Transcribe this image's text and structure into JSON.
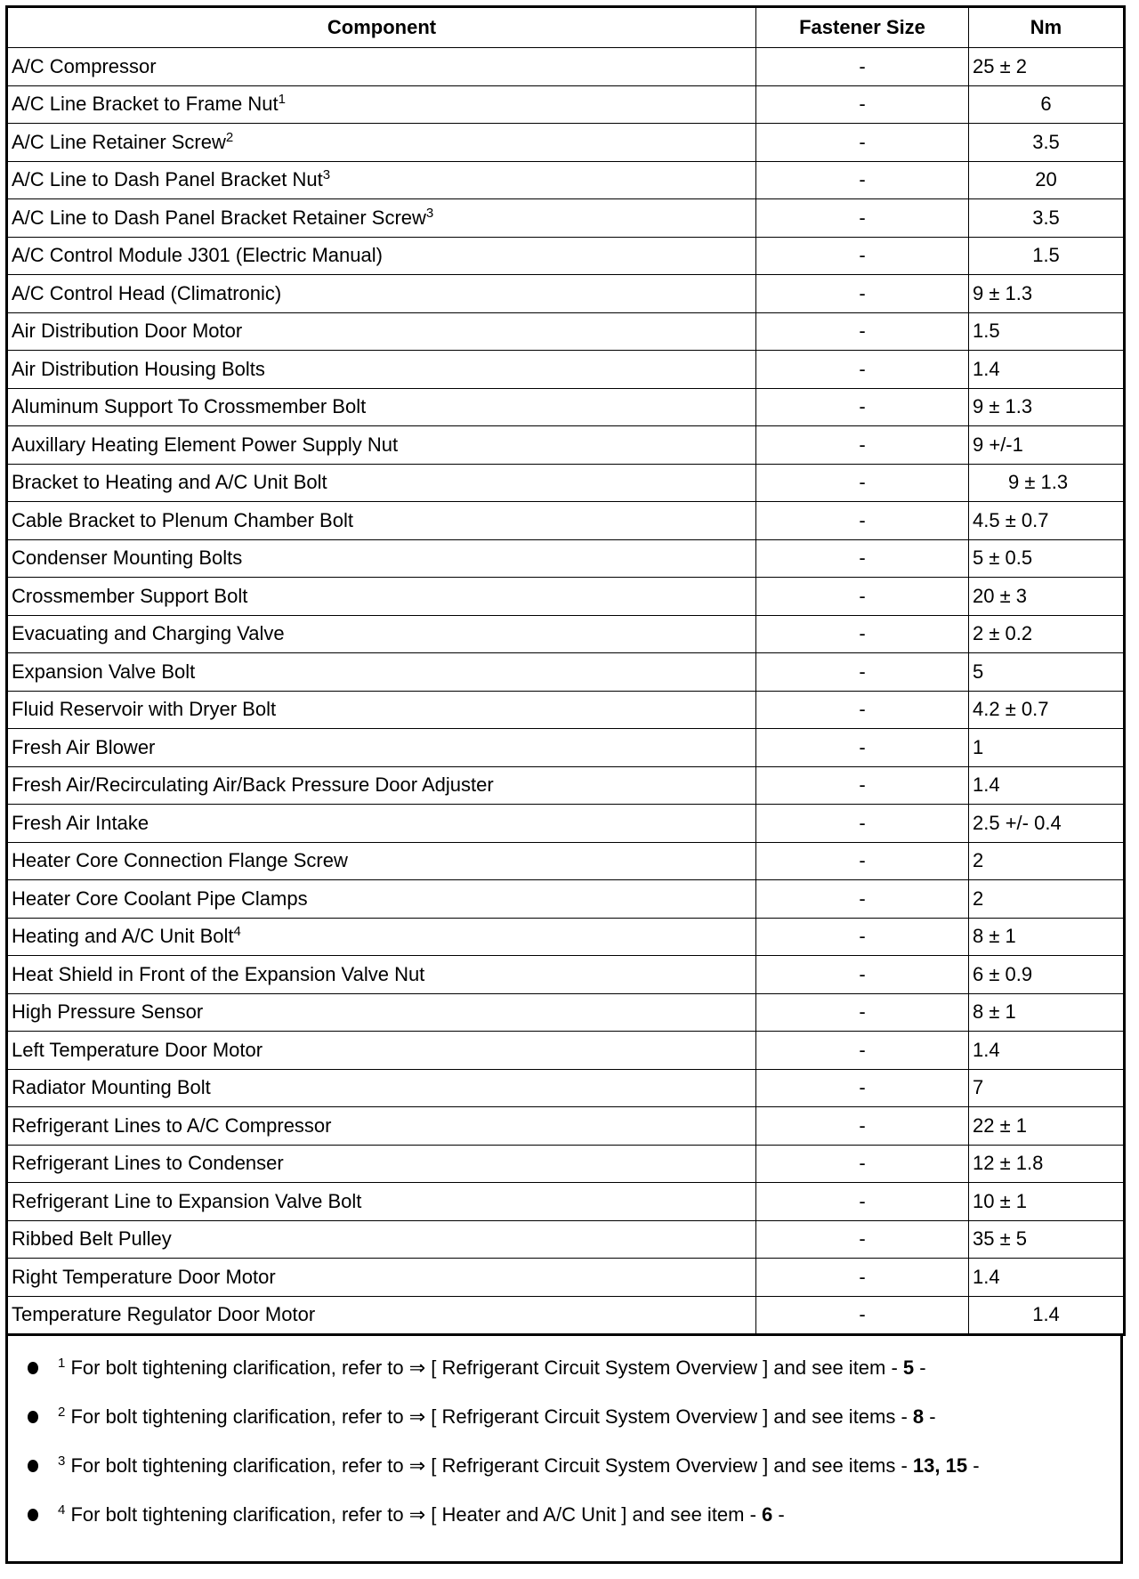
{
  "headers": [
    "Component",
    "Fastener Size",
    "Nm"
  ],
  "rows": [
    {
      "component": "A/C Compressor",
      "sup": "",
      "size": "-",
      "nm": "25 ± 2"
    },
    {
      "component": "A/C Line Bracket to Frame Nut",
      "sup": "1",
      "size": "-",
      "nm": "6"
    },
    {
      "component": "A/C Line Retainer Screw",
      "sup": "2",
      "size": "-",
      "nm": "3.5"
    },
    {
      "component": "A/C Line to Dash Panel Bracket Nut",
      "sup": "3",
      "size": "-",
      "nm": "20"
    },
    {
      "component": "A/C Line to Dash Panel Bracket Retainer Screw",
      "sup": "3",
      "size": "-",
      "nm": "3.5"
    },
    {
      "component": "A/C Control Module J301 (Electric Manual)",
      "sup": "",
      "size": "-",
      "nm": "1.5"
    },
    {
      "component": "A/C Control Head (Climatronic)",
      "sup": "",
      "size": "-",
      "nm": "9 ± 1.3"
    },
    {
      "component": "Air Distribution Door Motor",
      "sup": "",
      "size": "-",
      "nm": "1.5"
    },
    {
      "component": "Air Distribution Housing Bolts",
      "sup": "",
      "size": "-",
      "nm": "1.4"
    },
    {
      "component": "Aluminum Support To Crossmember Bolt",
      "sup": "",
      "size": "-",
      "nm": "9 ± 1.3"
    },
    {
      "component": "Auxillary Heating Element Power Supply Nut",
      "sup": "",
      "size": "-",
      "nm": "9 +/-1"
    },
    {
      "component": "Bracket to Heating and A/C Unit Bolt",
      "sup": "",
      "size": "-",
      "nm": "9 ± 1.3"
    },
    {
      "component": "Cable Bracket to Plenum Chamber Bolt",
      "sup": "",
      "size": "-",
      "nm": "4.5 ± 0.7"
    },
    {
      "component": "Condenser Mounting Bolts",
      "sup": "",
      "size": "-",
      "nm": "5 ± 0.5"
    },
    {
      "component": "Crossmember Support Bolt",
      "sup": "",
      "size": "-",
      "nm": "20 ± 3"
    },
    {
      "component": "Evacuating and Charging Valve",
      "sup": "",
      "size": "-",
      "nm": "2 ± 0.2"
    },
    {
      "component": "Expansion Valve Bolt",
      "sup": "",
      "size": "-",
      "nm": "5"
    },
    {
      "component": "Fluid Reservoir with Dryer Bolt",
      "sup": "",
      "size": "-",
      "nm": "4.2 ± 0.7"
    },
    {
      "component": "Fresh Air Blower",
      "sup": "",
      "size": "-",
      "nm": "1"
    },
    {
      "component": "Fresh Air/Recirculating Air/Back Pressure Door Adjuster",
      "sup": "",
      "size": "-",
      "nm": "1.4"
    },
    {
      "component": "Fresh Air Intake",
      "sup": "",
      "size": "-",
      "nm": "2.5 +/- 0.4"
    },
    {
      "component": "Heater Core Connection Flange Screw",
      "sup": "",
      "size": "-",
      "nm": "2"
    },
    {
      "component": "Heater Core Coolant Pipe Clamps",
      "sup": "",
      "size": "-",
      "nm": "2"
    },
    {
      "component": "Heating and A/C Unit Bolt",
      "sup": "4",
      "size": "-",
      "nm": "8 ± 1"
    },
    {
      "component": "Heat Shield in Front of the Expansion Valve Nut",
      "sup": "",
      "size": "-",
      "nm": "6 ± 0.9"
    },
    {
      "component": "High Pressure Sensor",
      "sup": "",
      "size": "-",
      "nm": "8 ± 1"
    },
    {
      "component": "Left Temperature Door Motor",
      "sup": "",
      "size": "-",
      "nm": "1.4"
    },
    {
      "component": "Radiator Mounting Bolt",
      "sup": "",
      "size": "-",
      "nm": "7"
    },
    {
      "component": "Refrigerant Lines to A/C Compressor",
      "sup": "",
      "size": "-",
      "nm": "22 ± 1"
    },
    {
      "component": "Refrigerant Lines to Condenser",
      "sup": "",
      "size": "-",
      "nm": "12 ± 1.8"
    },
    {
      "component": "Refrigerant Line to Expansion Valve Bolt",
      "sup": "",
      "size": "-",
      "nm": "10 ± 1"
    },
    {
      "component": "Ribbed Belt Pulley",
      "sup": "",
      "size": "-",
      "nm": "35 ± 5"
    },
    {
      "component": "Right Temperature Door Motor",
      "sup": "",
      "size": "-",
      "nm": "1.4"
    },
    {
      "component": "Temperature Regulator Door Motor",
      "sup": "",
      "size": "-",
      "nm": "1.4"
    }
  ],
  "notes": [
    {
      "sup": "1",
      "text": "For bolt tightening clarification, refer to ⇒ [ Refrigerant Circuit System Overview ] and see item - ",
      "bold": "5",
      "end": " -"
    },
    {
      "sup": "2",
      "text": "For bolt tightening clarification, refer to ⇒ [ Refrigerant Circuit System Overview ] and see items - ",
      "bold": "8",
      "end": " -"
    },
    {
      "sup": "3",
      "text": "For bolt tightening clarification, refer to ⇒ [ Refrigerant Circuit System Overview ] and see items - ",
      "bold": "13, 15",
      "end": " -"
    },
    {
      "sup": "4",
      "text": "For bolt tightening clarification, refer to ⇒ [ Heater and A/C Unit ] and see item - ",
      "bold": "6",
      "end": " -"
    }
  ]
}
